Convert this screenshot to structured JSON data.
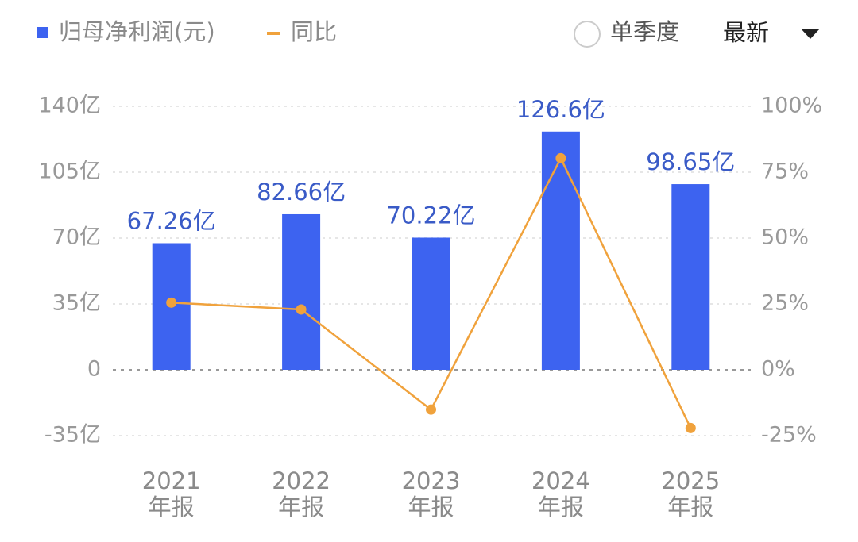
{
  "chart_data": {
    "type": "bar_line",
    "categories": [
      "2021\n年报",
      "2022\n年报",
      "2023\n年报",
      "2024\n年报",
      "2025\n年报"
    ],
    "series": [
      {
        "name": "归母净利润(元)",
        "type": "bar",
        "color": "#3d63f0",
        "axis": "y",
        "values": [
          67.26,
          82.66,
          70.22,
          126.6,
          98.65
        ],
        "value_labels": [
          "67.26亿",
          "82.66亿",
          "70.22亿",
          "126.6亿",
          "98.65亿"
        ]
      },
      {
        "name": "同比",
        "type": "line",
        "color": "#f0a23c",
        "axis": "y2",
        "values": [
          25.5,
          22.9,
          -15.1,
          80.3,
          -22.1
        ]
      }
    ],
    "ylim": [
      -35,
      140
    ],
    "yticks": [
      {
        "value": -35,
        "label": "-35亿"
      },
      0,
      {
        "value": 35,
        "label": "35亿"
      },
      {
        "value": 70,
        "label": "70亿"
      },
      {
        "value": 105,
        "label": "105亿"
      },
      {
        "value": 140,
        "label": "140亿"
      }
    ],
    "y2lim": [
      -25,
      100
    ],
    "y2ticks": [
      {
        "value": -25,
        "label": "-25%"
      },
      {
        "value": 0,
        "label": "0%"
      },
      {
        "value": 25,
        "label": "25%"
      },
      {
        "value": 50,
        "label": "50%"
      },
      {
        "value": 75,
        "label": "75%"
      },
      {
        "value": 100,
        "label": "100%"
      }
    ],
    "grid": true
  },
  "controls": {
    "single_quarter": "单季度",
    "period": "最新"
  }
}
